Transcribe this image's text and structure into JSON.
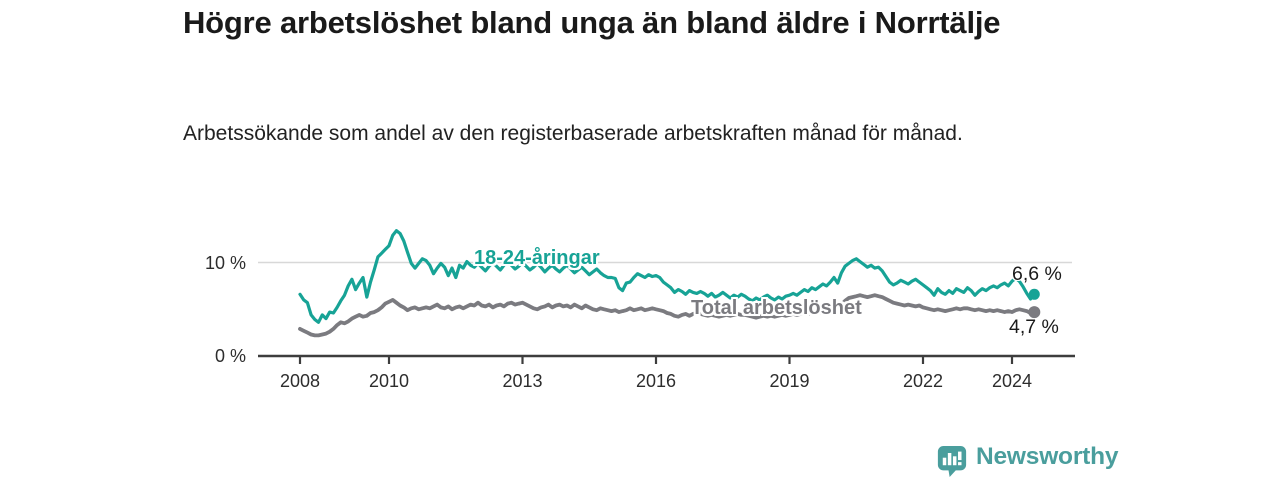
{
  "header": {
    "title": "Högre arbetslöshet bland unga än bland äldre i Norrtälje",
    "subtitle": "Arbetssökande som andel av den registerbaserade arbetskraften månad för månad."
  },
  "footer": {
    "brand": "Newsworthy",
    "brand_color": "#4a9e9d"
  },
  "chart_data": {
    "type": "line",
    "title": "Högre arbetslöshet bland unga än bland äldre i Norrtälje",
    "subtitle": "Arbetssökande som andel av den registerbaserade arbetskraften månad för månad.",
    "unit": "%",
    "frequency": "monthly",
    "start": "2008-01",
    "end": "2024-07",
    "grid": "horizontal line at 10 % only",
    "legend": "inline labels on lines",
    "x_axis": {
      "tick_years": [
        2008,
        2010,
        2013,
        2016,
        2019,
        2022,
        2024
      ],
      "tick_labels": [
        "2008",
        "2010",
        "2013",
        "2016",
        "2019",
        "2022",
        "2024"
      ]
    },
    "y_axis": {
      "ticks": [
        {
          "value": 0,
          "label": "0 %"
        },
        {
          "value": 10,
          "label": "10 %"
        }
      ],
      "range": [
        0,
        14
      ]
    },
    "series": [
      {
        "name": "18-24-åringar",
        "color": "#17a396",
        "end_value": 6.6,
        "end_value_label": "6,6 %",
        "values": [
          6.6,
          6.0,
          5.7,
          4.4,
          3.9,
          3.6,
          4.4,
          4.0,
          4.7,
          4.6,
          5.2,
          5.9,
          6.5,
          7.5,
          8.2,
          7.1,
          7.8,
          8.4,
          6.3,
          7.9,
          9.2,
          10.6,
          11.0,
          11.4,
          11.8,
          12.9,
          13.4,
          13.1,
          12.3,
          11.1,
          9.9,
          9.4,
          9.9,
          10.4,
          10.2,
          9.7,
          8.8,
          9.4,
          9.9,
          9.5,
          8.6,
          9.4,
          8.4,
          9.7,
          9.4,
          10.1,
          9.7,
          9.5,
          9.9,
          9.5,
          9.1,
          9.6,
          10.0,
          9.6,
          9.2,
          9.7,
          10.1,
          9.7,
          9.3,
          9.6,
          10.0,
          9.6,
          9.2,
          9.5,
          9.9,
          9.5,
          9.0,
          9.4,
          9.7,
          9.3,
          9.0,
          9.4,
          9.7,
          9.3,
          8.9,
          9.2,
          9.5,
          9.1,
          8.7,
          9.0,
          9.3,
          8.9,
          8.6,
          8.4,
          8.4,
          8.3,
          7.3,
          7.0,
          7.8,
          7.9,
          8.4,
          8.8,
          8.6,
          8.4,
          8.7,
          8.5,
          8.6,
          8.4,
          7.9,
          7.6,
          7.3,
          6.8,
          7.1,
          6.9,
          6.6,
          7.0,
          6.8,
          6.7,
          6.9,
          6.7,
          6.4,
          6.7,
          6.3,
          6.5,
          6.8,
          6.5,
          6.2,
          6.5,
          6.3,
          6.6,
          6.4,
          6.1,
          5.9,
          6.2,
          6.0,
          6.3,
          6.5,
          6.2,
          6.0,
          6.3,
          6.1,
          6.4,
          6.5,
          6.7,
          6.5,
          6.8,
          7.1,
          6.9,
          7.3,
          7.1,
          7.4,
          7.7,
          7.5,
          7.9,
          8.4,
          7.8,
          8.9,
          9.6,
          9.9,
          10.2,
          10.4,
          10.1,
          9.8,
          9.5,
          9.7,
          9.4,
          9.5,
          9.1,
          8.5,
          7.9,
          7.6,
          7.8,
          8.1,
          7.9,
          7.7,
          8.0,
          8.2,
          7.9,
          7.6,
          7.3,
          7.0,
          6.5,
          7.2,
          6.8,
          6.6,
          7.0,
          6.7,
          7.2,
          7.0,
          6.8,
          7.3,
          7.0,
          6.5,
          6.9,
          7.2,
          7.0,
          7.3,
          7.5,
          7.3,
          7.6,
          7.8,
          7.5,
          8.0,
          8.3,
          8.0,
          7.4,
          6.7,
          6.1,
          6.6
        ]
      },
      {
        "name": "Total arbetslöshet",
        "color": "#7b7b80",
        "end_value": 4.7,
        "end_value_label": "4,7 %",
        "values": [
          2.9,
          2.7,
          2.5,
          2.3,
          2.2,
          2.2,
          2.3,
          2.4,
          2.6,
          2.9,
          3.3,
          3.6,
          3.5,
          3.7,
          4.0,
          4.2,
          4.4,
          4.2,
          4.3,
          4.6,
          4.7,
          4.9,
          5.2,
          5.6,
          5.8,
          6.0,
          5.7,
          5.4,
          5.2,
          4.9,
          5.1,
          5.2,
          5.0,
          5.1,
          5.2,
          5.1,
          5.3,
          5.5,
          5.2,
          5.1,
          5.3,
          5.0,
          5.2,
          5.3,
          5.1,
          5.3,
          5.5,
          5.4,
          5.7,
          5.4,
          5.3,
          5.5,
          5.2,
          5.4,
          5.5,
          5.3,
          5.6,
          5.7,
          5.5,
          5.6,
          5.7,
          5.5,
          5.3,
          5.1,
          5.0,
          5.2,
          5.3,
          5.5,
          5.2,
          5.4,
          5.5,
          5.3,
          5.4,
          5.2,
          5.5,
          5.3,
          5.1,
          5.4,
          5.2,
          5.0,
          4.9,
          5.1,
          5.0,
          4.9,
          4.8,
          4.9,
          4.7,
          4.8,
          4.9,
          5.1,
          4.9,
          5.0,
          5.1,
          4.9,
          5.0,
          5.1,
          5.0,
          4.9,
          4.8,
          4.6,
          4.5,
          4.3,
          4.2,
          4.4,
          4.5,
          4.3,
          4.5,
          4.6,
          4.5,
          4.4,
          4.3,
          4.4,
          4.3,
          4.2,
          4.3,
          4.4,
          4.3,
          4.4,
          4.5,
          4.4,
          4.4,
          4.3,
          4.2,
          4.1,
          4.2,
          4.3,
          4.2,
          4.3,
          4.2,
          4.3,
          4.4,
          4.3,
          4.4,
          4.5,
          4.4,
          4.5,
          4.6,
          4.5,
          4.6,
          4.7,
          4.6,
          4.7,
          4.8,
          4.9,
          5.0,
          5.1,
          5.5,
          5.9,
          6.2,
          6.3,
          6.4,
          6.5,
          6.4,
          6.3,
          6.4,
          6.5,
          6.4,
          6.3,
          6.1,
          5.9,
          5.7,
          5.6,
          5.5,
          5.4,
          5.5,
          5.4,
          5.3,
          5.4,
          5.2,
          5.1,
          5.0,
          4.9,
          5.0,
          4.9,
          4.8,
          4.9,
          5.0,
          5.1,
          5.0,
          5.1,
          5.1,
          5.0,
          4.9,
          5.0,
          4.9,
          4.8,
          4.9,
          4.8,
          4.9,
          4.8,
          4.7,
          4.8,
          4.7,
          4.9,
          5.0,
          4.9,
          4.8,
          4.6,
          4.7
        ]
      }
    ]
  }
}
